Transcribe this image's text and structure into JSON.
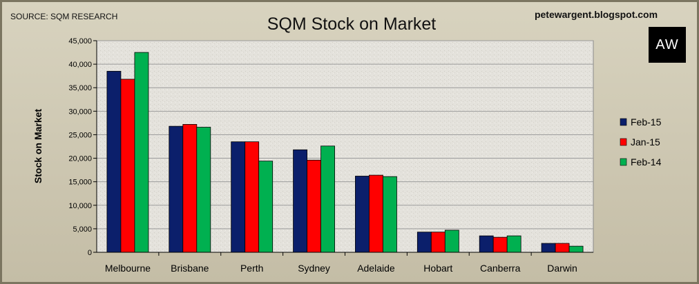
{
  "header": {
    "source": "SOURCE: SQM RESEARCH",
    "blog": "petewargent.blogspot.com",
    "logo_text": "AW"
  },
  "chart_data": {
    "type": "bar",
    "title": "SQM Stock on Market",
    "ylabel": "Stock on Market",
    "xlabel": "",
    "ylim": [
      0,
      45000
    ],
    "yticks": [
      "0",
      "5,000",
      "10,000",
      "15,000",
      "20,000",
      "25,000",
      "30,000",
      "35,000",
      "40,000",
      "45,000"
    ],
    "categories": [
      "Melbourne",
      "Brisbane",
      "Perth",
      "Sydney",
      "Adelaide",
      "Hobart",
      "Canberra",
      "Darwin"
    ],
    "series": [
      {
        "name": "Feb-15",
        "color": "#0b1f6b",
        "values": [
          38500,
          26800,
          23500,
          21800,
          16200,
          4300,
          3500,
          1900
        ]
      },
      {
        "name": "Jan-15",
        "color": "#ff0000",
        "values": [
          36800,
          27200,
          23500,
          19600,
          16400,
          4300,
          3200,
          1900
        ]
      },
      {
        "name": "Feb-14",
        "color": "#00b050",
        "values": [
          42500,
          26600,
          19400,
          22600,
          16100,
          4700,
          3500,
          1300
        ]
      }
    ],
    "grid": true,
    "legend": "right"
  }
}
